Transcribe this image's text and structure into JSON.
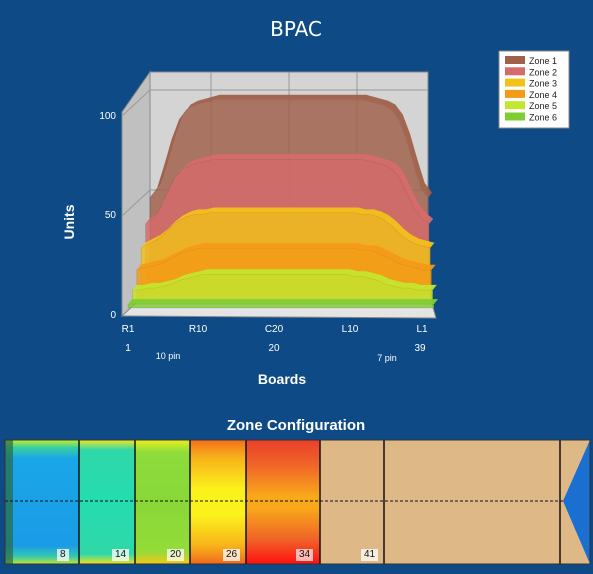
{
  "chart_data": {
    "type": "area",
    "title": "BPAC",
    "xlabel": "Boards",
    "ylabel": "Units",
    "ylim": [
      0,
      100
    ],
    "y_ticks": [
      "0",
      "50",
      "100"
    ],
    "x_ticks": [
      "R1",
      "R10",
      "C20",
      "L10",
      "L1"
    ],
    "x_subticks": [
      "1",
      "20",
      "39"
    ],
    "pin_labels": [
      "10 pin",
      "7 pin"
    ],
    "legend_position": "top-right",
    "x": [
      1,
      2,
      3,
      4,
      5,
      6,
      7,
      8,
      9,
      10,
      11,
      12,
      13,
      14,
      15,
      16,
      17,
      18,
      19,
      20,
      21,
      22,
      23,
      24,
      25,
      26,
      27,
      28,
      29,
      30,
      31,
      32,
      33,
      34,
      35,
      36,
      37,
      38,
      39
    ],
    "series": [
      {
        "name": "Zone 1",
        "color": "#a0604a",
        "values": [
          45,
          50,
          62,
          75,
          85,
          90,
          92,
          93,
          94,
          95,
          95,
          95,
          95,
          95,
          95,
          95,
          95,
          95,
          95,
          95,
          95,
          95,
          95,
          95,
          95,
          95,
          95,
          95,
          95,
          95,
          94,
          93,
          92,
          90,
          85,
          75,
          62,
          50,
          45
        ]
      },
      {
        "name": "Zone 2",
        "color": "#d66b6b",
        "values": [
          34,
          37,
          42,
          50,
          58,
          62,
          64,
          65,
          66,
          67,
          67,
          67,
          67,
          67,
          67,
          67,
          67,
          67,
          67,
          67,
          67,
          67,
          67,
          67,
          67,
          67,
          67,
          67,
          67,
          67,
          66,
          65,
          64,
          62,
          58,
          50,
          42,
          37,
          34
        ]
      },
      {
        "name": "Zone 3",
        "color": "#f2c21a",
        "values": [
          24,
          26,
          28,
          31,
          35,
          38,
          40,
          41,
          41,
          42,
          42,
          42,
          42,
          42,
          42,
          42,
          42,
          42,
          42,
          42,
          42,
          42,
          42,
          42,
          42,
          42,
          42,
          42,
          42,
          41,
          41,
          40,
          38,
          35,
          31,
          28,
          26,
          25,
          24
        ]
      },
      {
        "name": "Zone 4",
        "color": "#f59a16",
        "values": [
          15,
          16,
          17,
          18,
          20,
          22,
          24,
          25,
          26,
          26,
          26,
          26,
          26,
          26,
          26,
          26,
          26,
          26,
          26,
          26,
          26,
          26,
          26,
          26,
          26,
          26,
          26,
          26,
          26,
          25,
          25,
          24,
          22,
          20,
          18,
          17,
          16,
          15,
          15
        ]
      },
      {
        "name": "Zone 5",
        "color": "#c3e62e",
        "values": [
          7,
          7,
          8,
          8,
          9,
          10,
          12,
          13,
          14,
          15,
          15,
          15,
          15,
          15,
          15,
          15,
          15,
          15,
          15,
          15,
          15,
          15,
          15,
          15,
          15,
          15,
          15,
          15,
          14,
          14,
          13,
          12,
          10,
          9,
          8,
          8,
          7,
          7,
          7
        ]
      },
      {
        "name": "Zone 6",
        "color": "#7fcc33",
        "values": [
          2,
          2,
          2,
          2,
          2,
          2,
          2,
          2,
          2,
          2,
          2,
          2,
          2,
          2,
          2,
          2,
          2,
          2,
          2,
          2,
          2,
          2,
          2,
          2,
          2,
          2,
          2,
          2,
          2,
          2,
          2,
          2,
          2,
          2,
          2,
          2,
          2,
          2,
          2
        ]
      }
    ]
  },
  "zone_config": {
    "title": "Zone Configuration",
    "lane_labels": [
      "8",
      "14",
      "20",
      "26",
      "34",
      "41"
    ]
  }
}
